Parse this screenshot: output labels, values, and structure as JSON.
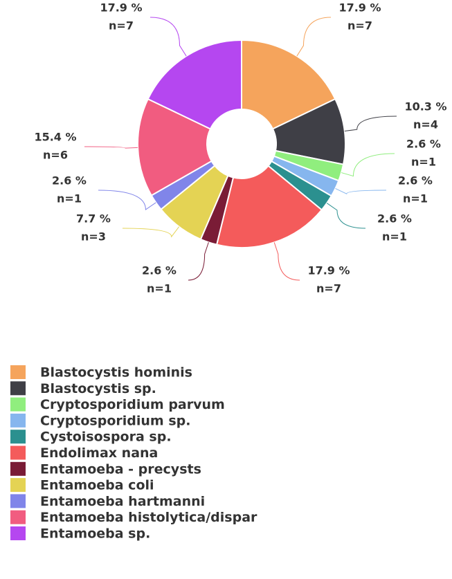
{
  "chart_data": {
    "type": "donut",
    "categories": [
      "Blastocystis hominis",
      "Blastocystis sp.",
      "Cryptosporidium parvum",
      "Cryptosporidium sp.",
      "Cystoisospora sp.",
      "Endolimax nana",
      "Entamoeba - precysts",
      "Entamoeba coli",
      "Entamoeba hartmanni",
      "Entamoeba histolytica/dispar",
      "Entamoeba sp."
    ],
    "values": [
      17.9,
      10.3,
      2.6,
      2.6,
      2.6,
      17.9,
      2.6,
      7.7,
      2.6,
      15.4,
      17.9
    ],
    "value_labels": [
      "17.9 %",
      "10.3 %",
      "2.6 %",
      "2.6 %",
      "2.6 %",
      "17.9 %",
      "2.6 %",
      "7.7 %",
      "2.6 %",
      "15.4 %",
      "17.9 %"
    ],
    "counts": [
      7,
      4,
      1,
      1,
      1,
      7,
      1,
      3,
      1,
      6,
      7
    ],
    "count_labels": [
      "n=7",
      "n=4",
      "n=1",
      "n=1",
      "n=1",
      "n=7",
      "n=1",
      "n=3",
      "n=1",
      "n=6",
      "n=7"
    ],
    "colors": [
      "#f5a45c",
      "#3f3f46",
      "#90ee7e",
      "#86b6ee",
      "#2b908f",
      "#f45b5b",
      "#7a1c36",
      "#e4d354",
      "#8085e9",
      "#f15c80",
      "#b547f0"
    ],
    "legend": "bottom-left"
  }
}
